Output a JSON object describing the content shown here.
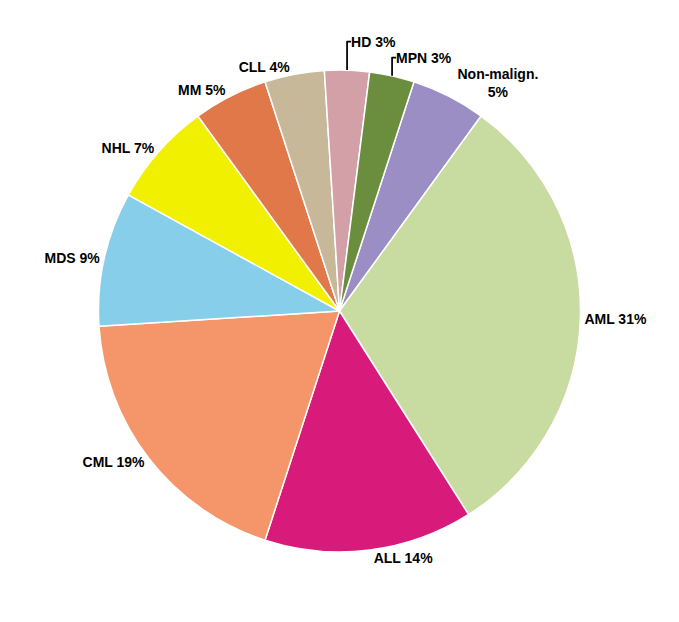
{
  "chart_data": {
    "type": "pie",
    "values": [
      5,
      31,
      14,
      19,
      9,
      7,
      5,
      4,
      3,
      3
    ],
    "value_labels": [
      "Non-malign.\n5%",
      "AML 31%",
      "ALL 14%",
      "CML 19%",
      "MDS 9%",
      "NHL 7%",
      "MM 5%",
      "CLL 4%",
      "HD 3%",
      "MPN 3%"
    ],
    "colors": [
      "#9b8ec4",
      "#c8dba0",
      "#d81b7a",
      "#f4956a",
      "#87ceeb",
      "#f0f000",
      "#e0784a",
      "#c8b89a",
      "#d4a0a8",
      "#6b8e3e"
    ],
    "data_labels": true,
    "legend": false
  }
}
